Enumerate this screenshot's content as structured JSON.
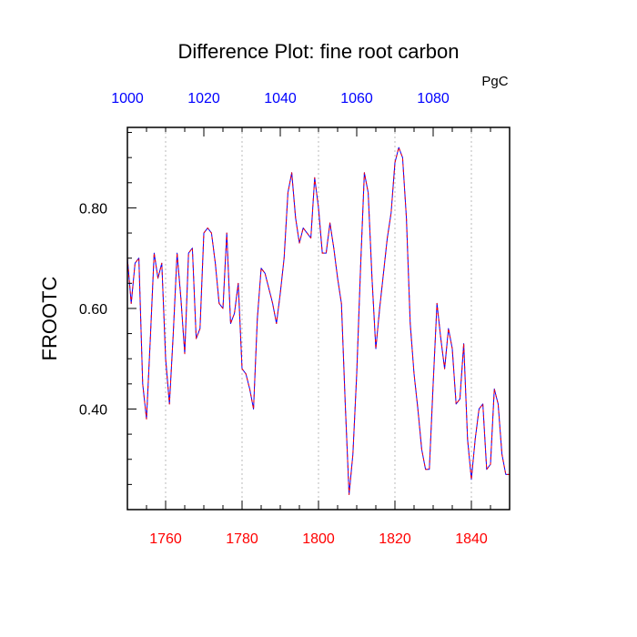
{
  "chart_data": {
    "type": "line",
    "title": "Difference Plot: fine root carbon",
    "ylabel": "FROOTC",
    "top_axis_unit": "PgC",
    "xlim": [
      1750,
      1850
    ],
    "ylim": [
      0.2,
      0.96
    ],
    "top_xlim": [
      1000,
      1100
    ],
    "grid": "vertical dashed lines at bottom major ticks",
    "bottom_ticks": [
      {
        "value": 1760,
        "label": "1760"
      },
      {
        "value": 1780,
        "label": "1780"
      },
      {
        "value": 1800,
        "label": "1800"
      },
      {
        "value": 1820,
        "label": "1820"
      },
      {
        "value": 1840,
        "label": "1840"
      }
    ],
    "top_ticks": [
      {
        "value": 1000,
        "label": "1000"
      },
      {
        "value": 1020,
        "label": "1020"
      },
      {
        "value": 1040,
        "label": "1040"
      },
      {
        "value": 1060,
        "label": "1060"
      },
      {
        "value": 1080,
        "label": "1080"
      }
    ],
    "y_ticks": [
      {
        "value": 0.4,
        "label": "0.40"
      },
      {
        "value": 0.6,
        "label": "0.60"
      },
      {
        "value": 0.8,
        "label": "0.80"
      }
    ],
    "colors": {
      "bottom_tick_labels": "#ff0000",
      "top_tick_labels": "#0000ff",
      "series_a": "#0000ff",
      "series_b": "#ff0000"
    },
    "series": [
      {
        "x": [
          1750,
          1751,
          1752,
          1753,
          1754,
          1755,
          1756,
          1757,
          1758,
          1759,
          1760,
          1761,
          1762,
          1763,
          1764,
          1765,
          1766,
          1767,
          1768,
          1769,
          1770,
          1771,
          1772,
          1773,
          1774,
          1775,
          1776,
          1777,
          1778,
          1779,
          1780,
          1781,
          1782,
          1783,
          1784,
          1785,
          1786,
          1787,
          1788,
          1789,
          1790,
          1791,
          1792,
          1793,
          1794,
          1795,
          1796,
          1797,
          1798,
          1799,
          1800,
          1801,
          1802,
          1803,
          1804,
          1805,
          1806,
          1807,
          1808,
          1809,
          1810,
          1811,
          1812,
          1813,
          1814,
          1815,
          1816,
          1817,
          1818,
          1819,
          1820,
          1821,
          1822,
          1823,
          1824,
          1825,
          1826,
          1827,
          1828,
          1829,
          1830,
          1831,
          1832,
          1833,
          1834,
          1835,
          1836,
          1837,
          1838,
          1839,
          1840,
          1841,
          1842,
          1843,
          1844,
          1845,
          1846,
          1847,
          1848,
          1849,
          1850
        ],
        "values": [
          0.7,
          0.61,
          0.69,
          0.7,
          0.45,
          0.38,
          0.54,
          0.71,
          0.66,
          0.69,
          0.5,
          0.41,
          0.55,
          0.71,
          0.62,
          0.51,
          0.71,
          0.72,
          0.54,
          0.56,
          0.75,
          0.76,
          0.75,
          0.69,
          0.61,
          0.6,
          0.75,
          0.57,
          0.59,
          0.65,
          0.48,
          0.47,
          0.44,
          0.4,
          0.58,
          0.68,
          0.67,
          0.64,
          0.61,
          0.57,
          0.63,
          0.7,
          0.83,
          0.87,
          0.78,
          0.73,
          0.76,
          0.75,
          0.74,
          0.86,
          0.8,
          0.71,
          0.71,
          0.77,
          0.72,
          0.66,
          0.61,
          0.41,
          0.23,
          0.31,
          0.47,
          0.68,
          0.87,
          0.83,
          0.66,
          0.52,
          0.6,
          0.67,
          0.74,
          0.79,
          0.89,
          0.92,
          0.9,
          0.78,
          0.57,
          0.47,
          0.4,
          0.32,
          0.28,
          0.28,
          0.45,
          0.61,
          0.54,
          0.48,
          0.56,
          0.52,
          0.41,
          0.42,
          0.53,
          0.34,
          0.26,
          0.34,
          0.4,
          0.41,
          0.28,
          0.29,
          0.44,
          0.41,
          0.31,
          0.27,
          0.27
        ]
      }
    ]
  }
}
